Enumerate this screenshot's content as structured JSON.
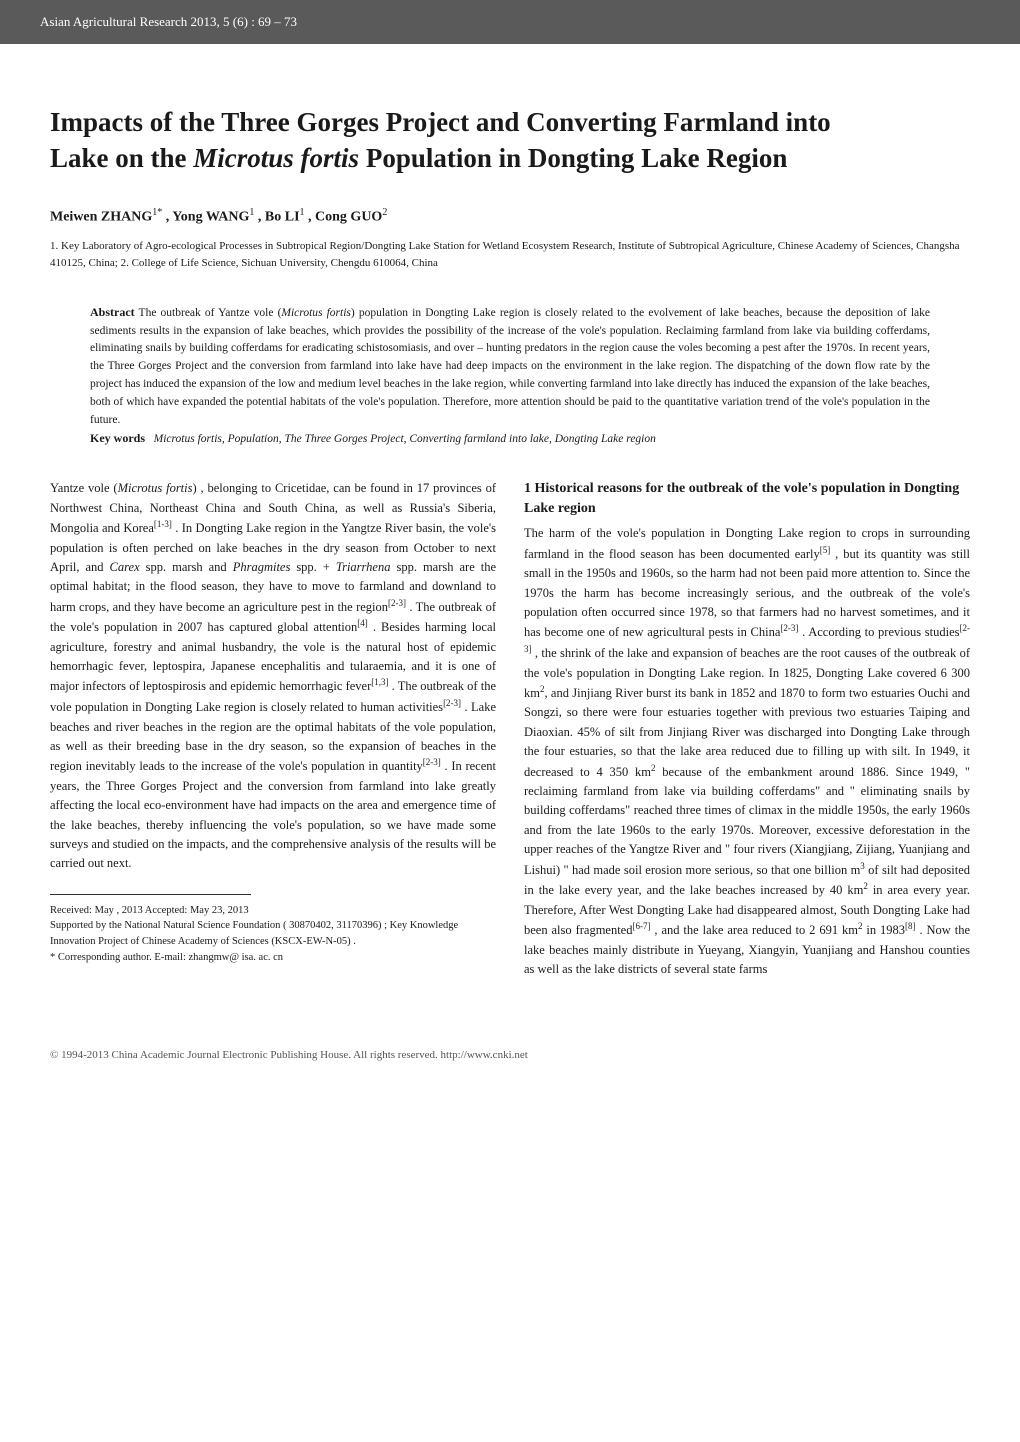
{
  "header": {
    "journal_line": "Asian Agricultural Research 2013, 5 (6) : 69 – 73"
  },
  "title": {
    "line1_prefix": "Impacts of the Three Gorges Project and Converting Farmland into",
    "line2_prefix": "Lake on the ",
    "line2_italic": "Microtus fortis",
    "line2_suffix": " Population in Dongting Lake Region"
  },
  "authors": {
    "line": "Meiwen ZHANG",
    "sup1": "1*",
    "sep1": " , Yong WANG",
    "sup2": "1",
    "sep2": " , Bo LI",
    "sup3": "1",
    "sep3": " , Cong GUO",
    "sup4": "2"
  },
  "affiliations": {
    "text": "1. Key Laboratory of Agro-ecological Processes in Subtropical Region/Dongting Lake Station for Wetland Ecosystem Research, Institute of Subtropical Agriculture, Chinese Academy of Sciences, Changsha 410125, China; 2. College of Life Science, Sichuan University, Chengdu 610064, China"
  },
  "abstract": {
    "label": "Abstract",
    "body_prefix": "  The outbreak of Yantze vole (",
    "body_italic1": "Microtus fortis",
    "body_mid": ") population in Dongting Lake region is closely related to the evolvement of lake beaches, because the deposition of lake sediments results in the expansion of lake beaches, which provides the possibility of the increase of the vole's population. Reclaiming farmland from lake via building cofferdams, eliminating snails by building cofferdams for eradicating schistosomiasis, and over – hunting predators in the region cause the voles becoming a pest after the 1970s. In recent years, the Three Gorges Project and the conversion from farmland into lake have had deep impacts on the environment in the lake region. The dispatching of the down flow rate by the project has induced the expansion of the low and medium level beaches in the lake region, while converting farmland into lake directly has induced the expansion of the lake beaches, both of which have expanded the potential habitats of the vole's population. Therefore, more attention should be paid to the quantitative variation trend of the vole's population in the future.",
    "keywords_label": "Key words",
    "keywords_italic": "Microtus fortis",
    "keywords_rest": ", Population, The Three Gorges Project, Converting farmland into lake, Dongting Lake region"
  },
  "left_column": {
    "para1_prefix": "Yantze vole (",
    "para1_italic1": "Microtus fortis",
    "para1_mid1": ") , belonging to Cricetidae, can be found in 17 provinces of Northwest China, Northeast China and South China, as well as Russia's Siberia, Mongolia and Korea",
    "para1_sup1": "[1-3]",
    "para1_mid2": " . In Dongting Lake region in the Yangtze River basin, the vole's population is often perched on lake beaches in the dry season from October to next April, and ",
    "para1_italic2": "Carex",
    "para1_mid3": " spp. marsh and ",
    "para1_italic3": "Phragmites",
    "para1_mid4": " spp. + ",
    "para1_italic4": "Triarrhena",
    "para1_mid5": " spp. marsh are the optimal habitat; in the flood season, they have to move to farmland and downland to harm crops, and they have become an agriculture pest in the region",
    "para1_sup2": "[2-3]",
    "para1_mid6": " . The outbreak of the vole's population in 2007 has captured global attention",
    "para1_sup3": "[4]",
    "para1_mid7": " . Besides harming local agriculture, forestry and animal husbandry, the vole is the natural host of epidemic hemorrhagic fever, leptospira, Japanese encephalitis and tularaemia, and it is one of major infectors of leptospirosis and epidemic hemorrhagic fever",
    "para1_sup4": "[1,3]",
    "para1_mid8": " . The outbreak of the vole population in Dongting Lake region is closely related to human activities",
    "para1_sup5": "[2-3]",
    "para1_mid9": " . Lake beaches and river beaches in the region are the optimal habitats of the vole population, as well as their breeding base in the dry season, so the expansion of beaches in the region inevitably leads to the increase of the vole's population in quantity",
    "para1_sup6": "[2-3]",
    "para1_end": " . In recent years, the Three Gorges Project and the conversion from farmland into lake greatly affecting the local eco-environment have had impacts on the area and emergence time of the lake beaches, thereby influencing the vole's population, so we have made some surveys and studied on the impacts, and the comprehensive analysis of the results will be carried out next."
  },
  "right_column": {
    "heading": "1   Historical reasons for the outbreak of the vole's population in Dongting Lake region",
    "para1_start": "The harm of the vole's population in Dongting Lake region to crops in surrounding farmland in the flood season has been documented early",
    "para1_sup1": "[5]",
    "para1_mid1": " , but its quantity was still small in the 1950s and 1960s, so the harm had not been paid more attention to. Since the 1970s the harm has become increasingly serious, and the outbreak of the vole's population often occurred since 1978, so that farmers had no harvest sometimes, and it has become one of new agricultural pests in China",
    "para1_sup2": "[2-3]",
    "para1_mid2": " . According to previous studies",
    "para1_sup3": "[2-3]",
    "para1_mid3": " , the shrink of the lake and expansion of beaches are the root causes of the outbreak of the vole's population in Dongting Lake region. In 1825, Dongting Lake covered 6 300 km",
    "para1_sup4": "2",
    "para1_mid4": ", and Jinjiang River burst its bank in 1852 and 1870 to form two estuaries Ouchi and Songzi, so there were four estuaries together with previous two estuaries Taiping and Diaoxian. 45% of silt from Jinjiang River was discharged into Dongting Lake through the four estuaries, so that the lake area reduced due to filling up with silt. In 1949, it decreased to 4 350 km",
    "para1_sup5": "2",
    "para1_mid5": " because of the embankment around 1886. Since 1949, \" reclaiming farmland from lake via building cofferdams\" and \" eliminating snails by building cofferdams\" reached three times of climax in the middle 1950s, the early 1960s and from the late 1960s to the early 1970s. Moreover, excessive deforestation in the upper reaches of the Yangtze River and \" four rivers (Xiangjiang, Zijiang, Yuanjiang and Lishui) \" had made soil erosion more serious, so that one billion m",
    "para1_sup6": "3",
    "para1_mid6": " of silt had deposited in the lake every year, and the lake beaches increased by 40 km",
    "para1_sup7": "2",
    "para1_mid7": " in area every year. Therefore, After West Dongting Lake had disappeared almost, South Dongting Lake had been also fragmented",
    "para1_sup8": "[6-7]",
    "para1_mid8": " , and the lake area reduced to 2 691 km",
    "para1_sup9": "2",
    "para1_mid9": " in 1983",
    "para1_sup10": "[8]",
    "para1_end": " . Now the lake beaches mainly distribute in Yueyang, Xiangyin, Yuanjiang and Hanshou counties as well as the lake districts of several state farms"
  },
  "footnotes": {
    "received": "Received: May , 2013      Accepted: May 23, 2013",
    "supported": "Supported by the National Natural Science Foundation ( 30870402, 31170396) ; Key Knowledge Innovation Project of Chinese Academy of Sciences (KSCX-EW-N-05) .",
    "corresponding": "* Corresponding author. E-mail: zhangmw@ isa. ac. cn"
  },
  "footer": {
    "text": "© 1994-2013 China Academic Journal Electronic Publishing House. All rights reserved.    http://www.cnki.net"
  },
  "styling": {
    "background_color": "#ffffff",
    "header_bg": "#5a5a5a",
    "header_fg": "#ffffff",
    "text_color": "#1a1a1a",
    "title_fontsize": 27,
    "body_fontsize": 12.5,
    "abstract_fontsize": 11.5,
    "footnote_fontsize": 10.5
  }
}
